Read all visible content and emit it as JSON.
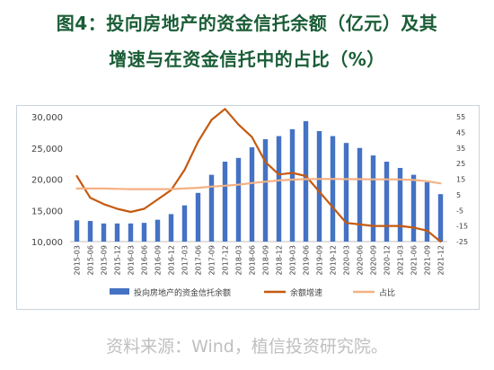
{
  "title_line1": "图4：投向房地产的资金信托余额（亿元）及其",
  "title_line2": "增速与在资金信托中的占比（%）",
  "source": "资料来源：Wind，植信投资研究院。",
  "colors": {
    "title": "#1a5d36",
    "bar": "#4472c4",
    "growth": "#c55a11",
    "share": "#f4b183",
    "source": "#bfbfbf"
  },
  "chart_data": {
    "type": "bar",
    "categories": [
      "2015-03",
      "2015-06",
      "2015-09",
      "2015-12",
      "2016-03",
      "2016-06",
      "2016-09",
      "2016-12",
      "2017-03",
      "2017-06",
      "2017-09",
      "2017-12",
      "2018-03",
      "2018-06",
      "2018-09",
      "2018-12",
      "2019-03",
      "2019-06",
      "2019-09",
      "2019-12",
      "2020-03",
      "2020-06",
      "2020-09",
      "2020-12",
      "2021-03",
      "2021-06",
      "2021-09",
      "2021-12"
    ],
    "x_tick_labels": [
      "2015-03",
      "2015-06",
      "2015-09",
      "2015-12",
      "2016-03",
      "2016-06",
      "2016-09",
      "2016-12",
      "2017-03",
      "2017-06",
      "2017-09",
      "2017-12",
      "2018-03",
      "2018-06",
      "2018-09",
      "2018-12",
      "2019-03",
      "2019-06",
      "2019-09",
      "2019-12",
      "2020-03",
      "2020-06",
      "2020-09",
      "2020-12",
      "2021-03",
      "2021-06",
      "2021-09",
      "2021-12"
    ],
    "series": [
      {
        "name": "投向房地产的资金信托余额",
        "kind": "bar",
        "axis": "left",
        "values": [
          13400,
          13300,
          12900,
          12900,
          12900,
          13000,
          13500,
          14400,
          15800,
          17800,
          20700,
          22800,
          23400,
          25100,
          26400,
          26900,
          28000,
          29300,
          27700,
          26900,
          25800,
          25000,
          23800,
          22800,
          21800,
          20700,
          19500,
          17600
        ]
      },
      {
        "name": "余额增速",
        "kind": "line",
        "axis": "right",
        "values": [
          17,
          3,
          -1,
          -4,
          -6,
          -4,
          2,
          8,
          21,
          39,
          53,
          60,
          50,
          42,
          26,
          18,
          19,
          17,
          7,
          -3,
          -13,
          -14,
          -15,
          -15,
          -15,
          -16,
          -18,
          -25
        ]
      },
      {
        "name": "占比",
        "kind": "line",
        "axis": "right",
        "values": [
          9,
          9,
          9,
          8.8,
          8.6,
          8.6,
          8.6,
          8.6,
          9,
          9.5,
          10.2,
          10.8,
          11.5,
          12.5,
          13.4,
          14.2,
          14.7,
          15,
          15.1,
          15.2,
          15,
          15,
          14.9,
          14.9,
          14.8,
          14.5,
          13.7,
          12.3
        ]
      }
    ],
    "y_left": {
      "min": 10000,
      "max": 30000,
      "ticks": [
        "30,000",
        "25,000",
        "20,000",
        "15,000",
        "10,000"
      ]
    },
    "y_right": {
      "min": -25,
      "max": 55,
      "ticks": [
        "55",
        "45",
        "35",
        "25",
        "15",
        "5",
        "-5",
        "-15",
        "-25"
      ]
    },
    "grid": false,
    "legend_position": "bottom"
  }
}
